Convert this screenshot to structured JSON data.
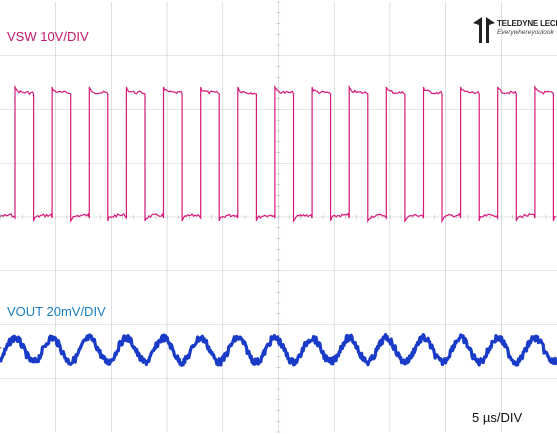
{
  "logo": {
    "name": "TELEDYNE LECROY",
    "tagline": "Everywhereyoulook"
  },
  "labels": {
    "vsw": "VSW 10V/DIV",
    "vout": "VOUT 20mV/DIV",
    "timebase": "5 µs/DIV"
  },
  "colors": {
    "vsw": "#d6197a",
    "vout": "#1a3bc8",
    "vsw_label": "#c2186f",
    "vout_label": "#1a7fc4",
    "grid": "#cccccc"
  },
  "chart_data": {
    "type": "line",
    "grid": true,
    "divisions": {
      "x": 10,
      "y": 8
    },
    "series": [
      {
        "name": "VSW",
        "waveform": "square",
        "scale": "10V/DIV",
        "cycles_on_screen": 15,
        "duty_cycle": 0.5,
        "amplitude_div": 1.8
      },
      {
        "name": "VOUT",
        "waveform": "ripple",
        "scale": "20mV/DIV",
        "cycles_on_screen": 15,
        "amplitude_div": 0.3
      }
    ]
  }
}
